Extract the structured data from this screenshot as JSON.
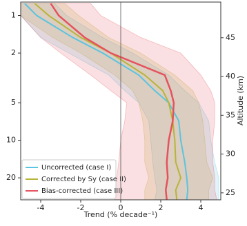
{
  "chart_data": {
    "type": "line",
    "xlabel": "Trend (% decade⁻¹)",
    "y2label": "Altitude (km)",
    "xlim": [
      -5,
      5
    ],
    "xticks": [
      -4,
      -2,
      0,
      2,
      4
    ],
    "ylim": [
      0.78,
      30
    ],
    "yticks": [
      1,
      2,
      5,
      10,
      20
    ],
    "ylog": true,
    "yinvert": true,
    "y2lim": [
      24.1,
      49.6
    ],
    "y2ticks": [
      25,
      30,
      35,
      40,
      45
    ],
    "vline": 0,
    "legend": "lower left",
    "y": [
      0.8,
      1,
      1.5,
      2,
      3,
      4,
      5,
      7,
      10,
      15,
      20,
      25,
      30
    ],
    "series": [
      {
        "name": "Uncorrected (case I)",
        "color": "#5bc4de",
        "values": [
          -4.8,
          -4.2,
          -2.4,
          -0.9,
          0.9,
          1.7,
          2.4,
          2.9,
          3.0,
          3.2,
          3.3,
          3.35,
          3.3
        ],
        "lower": [
          -5,
          -5,
          -4,
          -2.6,
          -0.6,
          0.2,
          0.9,
          1.4,
          1.5,
          1.6,
          1.7,
          1.8,
          1.7
        ],
        "upper": [
          -3.3,
          -2.7,
          -0.9,
          0.6,
          2.4,
          3.2,
          3.9,
          4.4,
          4.5,
          4.7,
          4.9,
          4.9,
          4.9
        ]
      },
      {
        "name": "Corrected by Sy (case II)",
        "color": "#b8b438",
        "values": [
          -4.3,
          -3.6,
          -2.0,
          -0.5,
          1.2,
          2.1,
          2.4,
          2.6,
          2.7,
          2.75,
          3.0,
          2.75,
          2.8
        ],
        "lower": [
          -5,
          -5,
          -3.4,
          -2.0,
          -0.3,
          0.6,
          0.9,
          1.1,
          1.2,
          1.2,
          1.4,
          1.2,
          1.2
        ],
        "upper": [
          -2.8,
          -2.1,
          -0.6,
          1.0,
          2.7,
          3.6,
          3.9,
          4.1,
          4.2,
          4.3,
          4.6,
          4.4,
          4.4
        ]
      },
      {
        "name": "Bias-corrected (case III)",
        "color": "#e5525e",
        "values": [
          -3.5,
          -3.1,
          -1.8,
          -0.5,
          2.2,
          2.5,
          2.65,
          2.6,
          2.4,
          2.3,
          2.35,
          2.25,
          2.3
        ],
        "lower": [
          -5,
          -5,
          -4,
          -3,
          -1.5,
          -0.5,
          0.3,
          0.2,
          0.0,
          -0.1,
          -0.2,
          -0.3,
          -0.3
        ],
        "upper": [
          -1.5,
          -1,
          1,
          3,
          4,
          4.5,
          4.7,
          4.7,
          4.6,
          4.6,
          4.7,
          4.7,
          4.8
        ]
      }
    ]
  }
}
